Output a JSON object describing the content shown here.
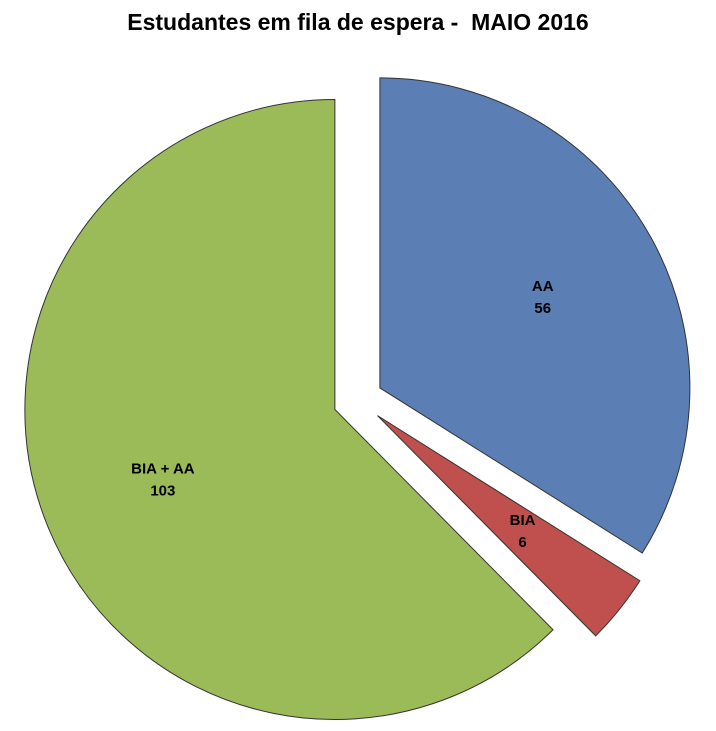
{
  "chart_data": {
    "type": "pie",
    "title": "Estudantes em fila de espera -  MAIO 2016",
    "categories": [
      "AA",
      "BIA",
      "BIA + AA"
    ],
    "values": [
      56,
      6,
      103
    ],
    "colors": [
      "#5b7fb4",
      "#c0504d",
      "#9bbb59"
    ]
  }
}
